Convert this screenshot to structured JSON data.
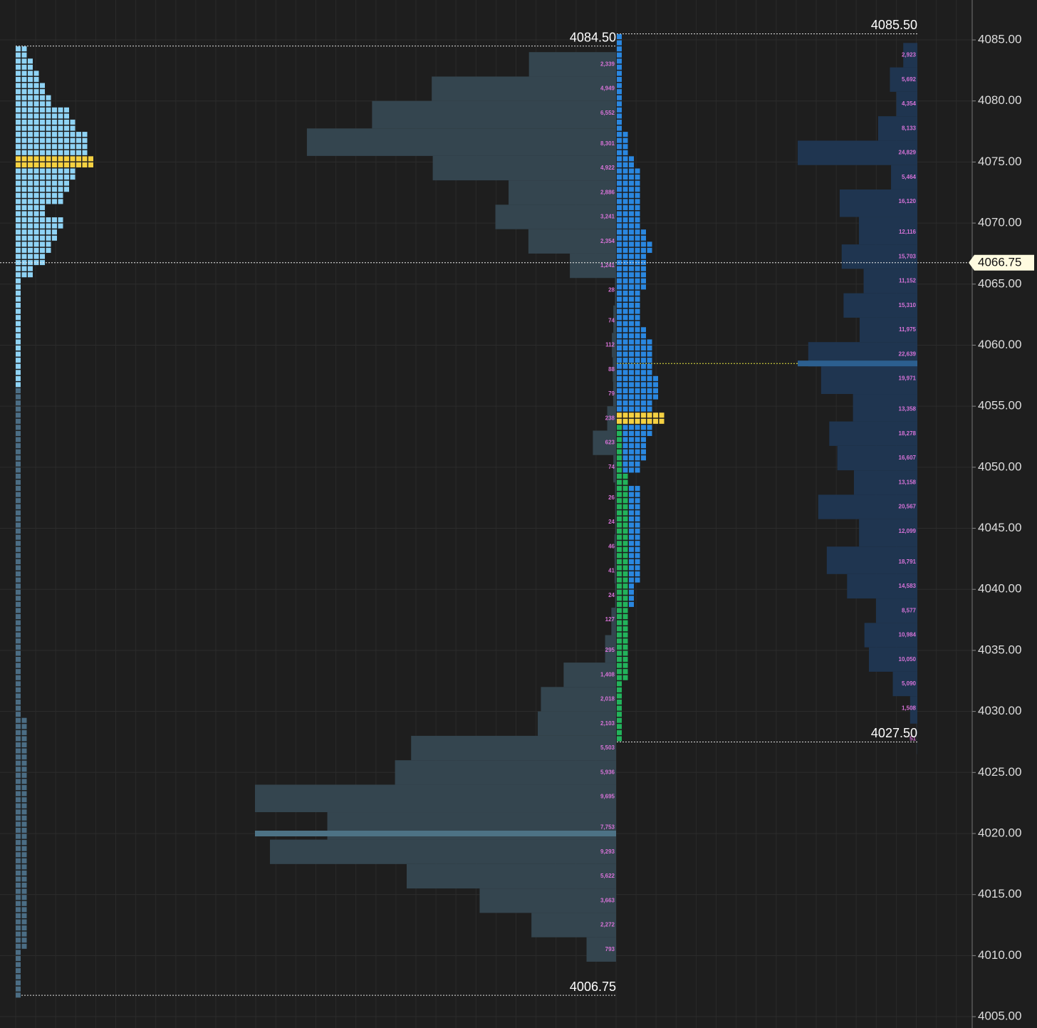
{
  "chart_data": {
    "type": "market_profile",
    "ylim": [
      4004.07,
      4088.27
    ],
    "yticks": [
      {
        "value": 4085,
        "label": "4085.00"
      },
      {
        "value": 4080,
        "label": "4080.00"
      },
      {
        "value": 4075,
        "label": "4075.00"
      },
      {
        "value": 4070,
        "label": "4070.00"
      },
      {
        "value": 4065,
        "label": "4065.00"
      },
      {
        "value": 4060,
        "label": "4060.00"
      },
      {
        "value": 4055,
        "label": "4055.00"
      },
      {
        "value": 4050,
        "label": "4050.00"
      },
      {
        "value": 4045,
        "label": "4045.00"
      },
      {
        "value": 4040,
        "label": "4040.00"
      },
      {
        "value": 4035,
        "label": "4035.00"
      },
      {
        "value": 4030,
        "label": "4030.00"
      },
      {
        "value": 4025,
        "label": "4025.00"
      },
      {
        "value": 4020,
        "label": "4020.00"
      },
      {
        "value": 4015,
        "label": "4015.00"
      },
      {
        "value": 4010,
        "label": "4010.00"
      },
      {
        "value": 4005,
        "label": "4005.00"
      }
    ],
    "last_price": {
      "value": 4066.75,
      "label": "4066.75"
    },
    "volume_profiles": [
      {
        "color": "#34454f",
        "poc_color": "#4d7285",
        "poc": 4020,
        "high": {
          "value": 4084.5,
          "label": "4084.50"
        },
        "low": {
          "value": 4006.75,
          "label": "4006.75"
        },
        "prices": [
          4083,
          4081,
          4079,
          4076.5,
          4074.5,
          4072.5,
          4070.5,
          4068.5,
          4066.5,
          4064.5,
          4062,
          4060,
          4058,
          4056,
          4054,
          4052,
          4050,
          4047.5,
          4045.5,
          4043.5,
          4041.5,
          4039.5,
          4037.5,
          4035,
          4033,
          4031,
          4029,
          4027,
          4025,
          4023,
          4020.5,
          4018.5,
          4016.5,
          4014.5,
          4012.5,
          4010.5
        ],
        "values": [
          2339,
          4949,
          6552,
          8301,
          4922,
          2886,
          3241,
          2354,
          1241,
          28,
          74,
          112,
          88,
          79,
          238,
          623,
          74,
          26,
          24,
          46,
          41,
          24,
          127,
          295,
          1408,
          2018,
          2103,
          5503,
          5936,
          9695,
          7753,
          9293,
          5622,
          3663,
          2272,
          793
        ],
        "value_labels": [
          "2,339",
          "4,949",
          "6,552",
          "8,301",
          "4,922",
          "2,886",
          "3,241",
          "2,354",
          "1,241",
          "28",
          "74",
          "112",
          "88",
          "79",
          "238",
          "623",
          "74",
          "26",
          "24",
          "46",
          "41",
          "24",
          "127",
          "295",
          "1,408",
          "2,018",
          "2,103",
          "5,503",
          "5,936",
          "9,695",
          "7,753",
          "9,293",
          "5,622",
          "3,663",
          "2,272",
          "793"
        ]
      },
      {
        "color": "#1f3550",
        "poc_color": "#2c5f8f",
        "poc": 4058.5,
        "high": {
          "value": 4085.5,
          "label": "4085.50"
        },
        "low": {
          "value": 4027.5,
          "label": "4027.50"
        },
        "prices": [
          4083.75,
          4081.75,
          4079.75,
          4077.75,
          4075.75,
          4073.75,
          4071.75,
          4069.25,
          4067.25,
          4065.25,
          4063.25,
          4061.25,
          4059.25,
          4057.25,
          4054.75,
          4052.75,
          4050.75,
          4048.75,
          4046.75,
          4044.75,
          4042.25,
          4040.25,
          4038.25,
          4036.25,
          4034.25,
          4032.25,
          4030.25,
          4027.75
        ],
        "values": [
          2923,
          5692,
          4354,
          8133,
          24829,
          5464,
          16120,
          12116,
          15703,
          11152,
          15310,
          11975,
          22639,
          19971,
          13358,
          18278,
          16607,
          13158,
          20567,
          12099,
          18791,
          14583,
          8577,
          10984,
          10050,
          5090,
          1508,
          51
        ],
        "value_labels": [
          "2,923",
          "5,692",
          "4,354",
          "8,133",
          "24,829",
          "5,464",
          "16,120",
          "12,116",
          "15,703",
          "11,152",
          "15,310",
          "11,975",
          "22,639",
          "19,971",
          "13,358",
          "18,278",
          "16,607",
          "13,158",
          "20,567",
          "12,099",
          "18,791",
          "14,583",
          "8,577",
          "10,984",
          "10,050",
          "5,090",
          "1,508",
          "51"
        ]
      }
    ],
    "tpo_profiles": [
      {
        "poc": 4075,
        "poc_color": "#f5d142",
        "prices": [
          4084,
          4083,
          4082,
          4081,
          4080,
          4079,
          4078,
          4077,
          4076,
          4075,
          4074,
          4073,
          4072,
          4071,
          4070,
          4069,
          4068,
          4067,
          4066,
          4065,
          4064,
          4063,
          4062,
          4061,
          4060,
          4059,
          4058,
          4057,
          4056,
          4055,
          4054,
          4053,
          4052,
          4051,
          4050,
          4049,
          4048,
          4047,
          4046,
          4045,
          4044,
          4043,
          4042,
          4041,
          4040,
          4039,
          4038,
          4037,
          4036,
          4035,
          4034,
          4033,
          4032,
          4031,
          4030,
          4029,
          4028,
          4027,
          4026,
          4025,
          4024,
          4023,
          4022,
          4021,
          4020,
          4019,
          4018,
          4017,
          4016,
          4015,
          4014,
          4013,
          4012,
          4011,
          4010,
          4009,
          4008,
          4007
        ],
        "series": [
          {
            "color": "#8fd3f5",
            "values": [
              2,
              3,
              4,
              5,
              6,
              9,
              10,
              12,
              12,
              13,
              10,
              9,
              8,
              5,
              8,
              7,
              6,
              5,
              3,
              1,
              1,
              1,
              1,
              1,
              1,
              1,
              1,
              1,
              0,
              0,
              0,
              0,
              0,
              0,
              0,
              0,
              0,
              0,
              0,
              0,
              0,
              0,
              0,
              0,
              0,
              0,
              0,
              0,
              0,
              0,
              0,
              0,
              0,
              0,
              0,
              0,
              0,
              0,
              0,
              0,
              0,
              0,
              0,
              0,
              0,
              0,
              0,
              0,
              0,
              0,
              0,
              0,
              0,
              0,
              0,
              0,
              0,
              0
            ]
          },
          {
            "color": "#4b6d84",
            "values": [
              0,
              0,
              0,
              0,
              0,
              0,
              0,
              0,
              0,
              0,
              0,
              0,
              0,
              0,
              0,
              0,
              0,
              0,
              0,
              0,
              0,
              0,
              0,
              0,
              0,
              0,
              0,
              0,
              1,
              1,
              1,
              1,
              1,
              1,
              1,
              1,
              1,
              1,
              1,
              1,
              1,
              1,
              1,
              1,
              1,
              1,
              1,
              1,
              1,
              1,
              1,
              1,
              1,
              1,
              1,
              2,
              2,
              2,
              2,
              2,
              2,
              2,
              2,
              2,
              2,
              2,
              2,
              2,
              2,
              2,
              2,
              2,
              2,
              2,
              1,
              1,
              1,
              1
            ]
          }
        ]
      },
      {
        "poc": 4054,
        "poc_color": "#f5d142",
        "prices": [
          4085,
          4084,
          4083,
          4082,
          4081,
          4080,
          4079,
          4078,
          4077,
          4076,
          4075,
          4074,
          4073,
          4072,
          4071,
          4070,
          4069,
          4068,
          4067,
          4066,
          4065,
          4064,
          4063,
          4062,
          4061,
          4060,
          4059,
          4058,
          4057,
          4056,
          4055,
          4054,
          4053,
          4052,
          4051,
          4050,
          4049,
          4048,
          4047,
          4046,
          4045,
          4044,
          4043,
          4042,
          4041,
          4040,
          4039,
          4038,
          4037,
          4036,
          4035,
          4034,
          4033,
          4032,
          4031,
          4030,
          4029,
          4028
        ],
        "series": [
          {
            "color": "#22b35b",
            "values": [
              0,
              0,
              0,
              0,
              0,
              0,
              0,
              0,
              0,
              0,
              0,
              0,
              0,
              0,
              0,
              0,
              0,
              0,
              0,
              0,
              0,
              0,
              0,
              0,
              0,
              0,
              0,
              0,
              0,
              0,
              0,
              1,
              1,
              1,
              1,
              1,
              2,
              2,
              2,
              2,
              2,
              2,
              2,
              2,
              2,
              2,
              2,
              2,
              2,
              2,
              2,
              2,
              2,
              1,
              1,
              1,
              1,
              1
            ]
          },
          {
            "color": "#2a87e0",
            "values": [
              1,
              1,
              1,
              1,
              1,
              1,
              1,
              1,
              2,
              2,
              3,
              4,
              4,
              4,
              4,
              4,
              5,
              6,
              5,
              5,
              5,
              4,
              4,
              4,
              5,
              6,
              6,
              6,
              7,
              7,
              6,
              7,
              5,
              4,
              4,
              3,
              0,
              2,
              2,
              2,
              2,
              2,
              2,
              2,
              2,
              1,
              1,
              0,
              0,
              0,
              0,
              0,
              0,
              0,
              0,
              0,
              0,
              0
            ]
          }
        ]
      }
    ]
  }
}
